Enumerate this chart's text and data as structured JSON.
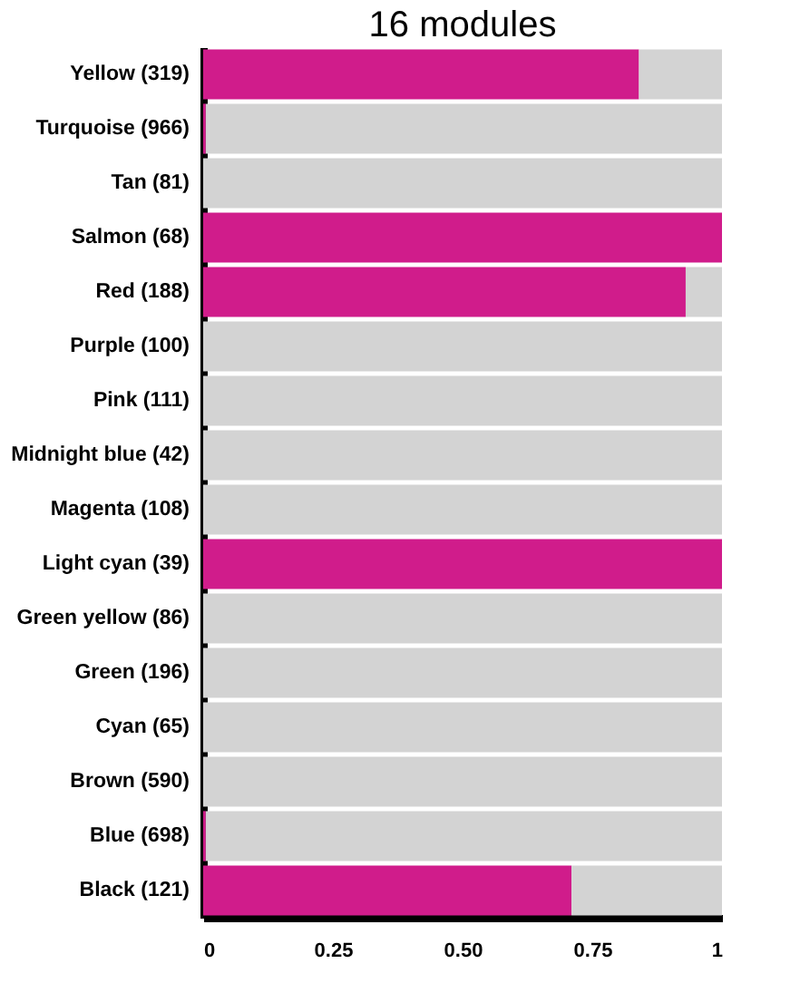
{
  "chart_data": {
    "type": "bar",
    "orientation": "horizontal",
    "stacked": true,
    "title": "16 modules",
    "categories": [
      "Yellow (319)",
      "Turquoise (966)",
      "Tan (81)",
      "Salmon (68)",
      "Red (188)",
      "Purple (100)",
      "Pink (111)",
      "Midnight blue (42)",
      "Magenta (108)",
      "Light cyan (39)",
      "Green yellow (86)",
      "Green (196)",
      "Cyan (65)",
      "Brown (590)",
      "Blue (698)",
      "Black (121)"
    ],
    "series": [
      {
        "color": "#d01c8b",
        "values": [
          0.84,
          0.005,
          0,
          1,
          0.93,
          0,
          0,
          0,
          0,
          1,
          0,
          0,
          0,
          0,
          0.005,
          0.71
        ]
      },
      {
        "color": "#d3d3d3",
        "values": [
          0.16,
          0.995,
          1,
          0,
          0.07,
          1,
          1,
          1,
          1,
          0,
          1,
          1,
          1,
          1,
          0.995,
          0.29
        ]
      }
    ],
    "xlim": [
      0,
      1
    ],
    "xticks": [
      0,
      0.25,
      {
        "value": 0.5,
        "label": "0.50"
      },
      0.75,
      1
    ],
    "grid": false,
    "legend": false
  }
}
